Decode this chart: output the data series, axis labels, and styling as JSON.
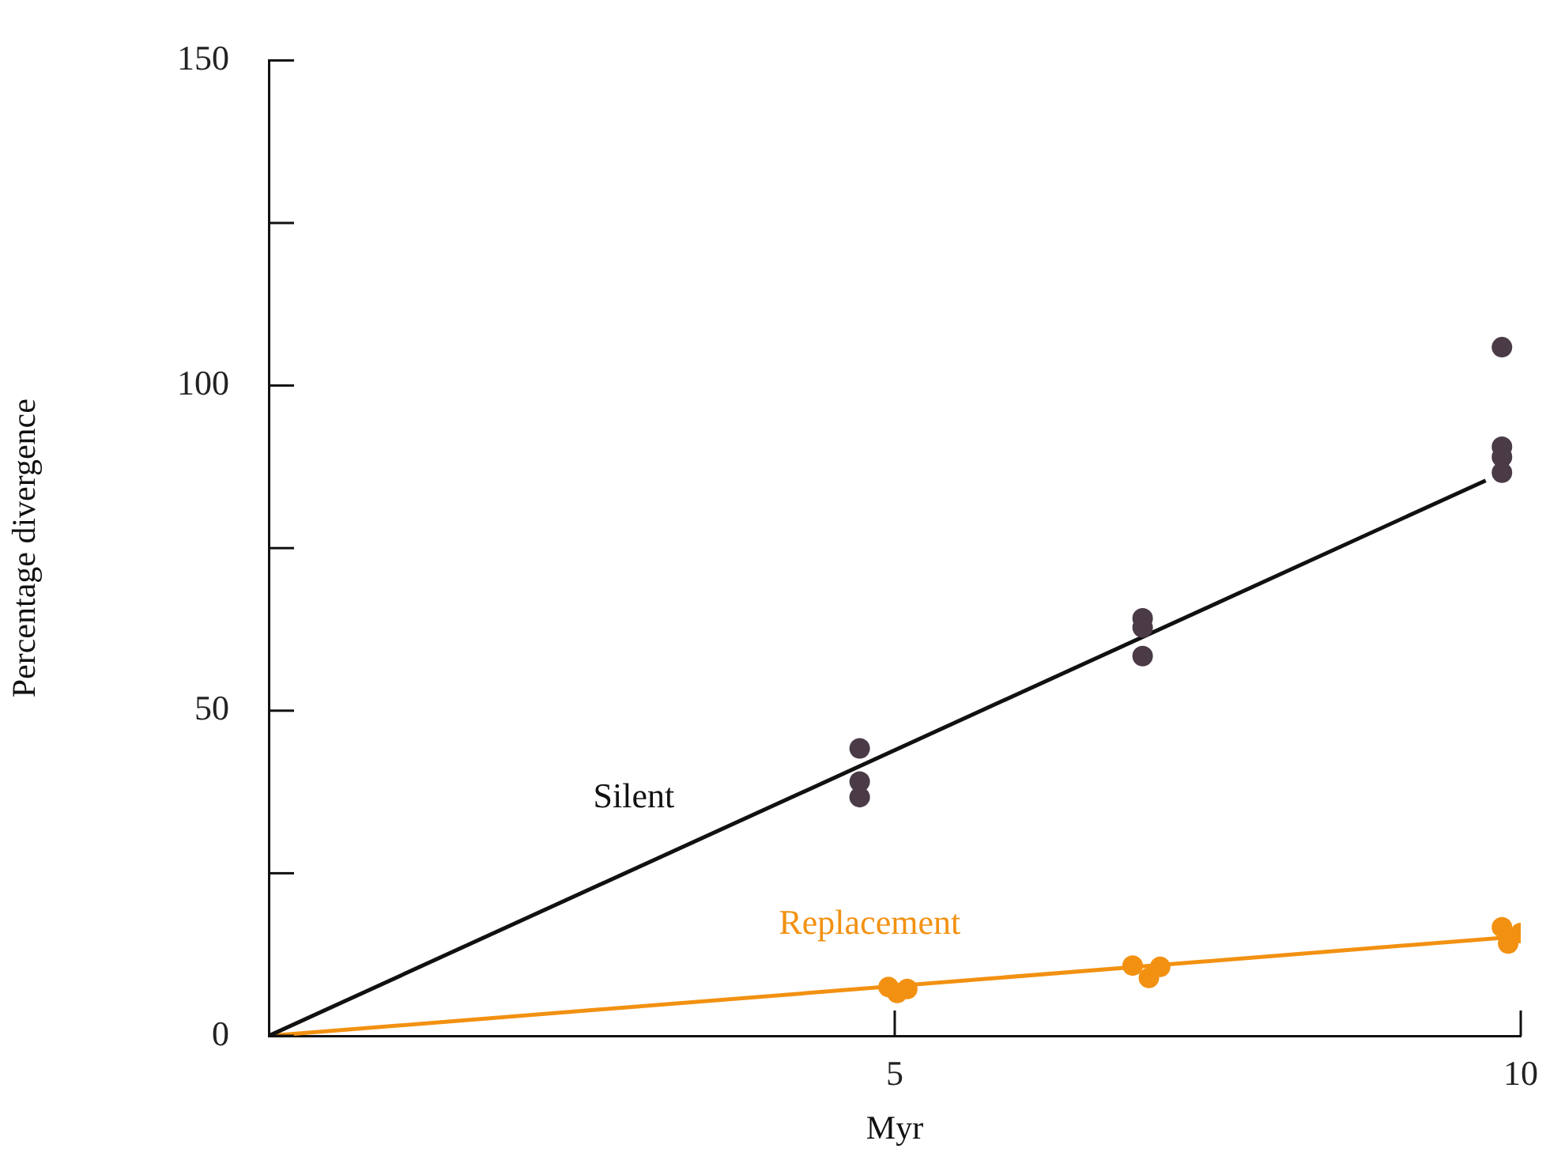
{
  "chart_data": {
    "type": "scatter",
    "xlabel": "Myr",
    "ylabel": "Percentage divergence",
    "xlim": [
      0,
      10
    ],
    "xticks": [
      5,
      10
    ],
    "ylim": [
      0,
      150
    ],
    "yticks": [
      0,
      {
        "value": 25,
        "label": null
      },
      50,
      {
        "value": 75,
        "label": null
      },
      100,
      {
        "value": 125,
        "label": null
      },
      150
    ],
    "grid": false,
    "legend": false,
    "marker": "circle",
    "series": [
      {
        "type": "scatter",
        "color": "#4b3b47",
        "x": [
          4.72,
          4.72,
          4.72,
          6.98,
          6.98,
          6.98,
          9.85,
          9.85,
          9.85,
          9.85
        ],
        "values": [
          44.2,
          39.1,
          36.7,
          64.2,
          62.8,
          58.4,
          105.9,
          90.6,
          89,
          86.6
        ]
      },
      {
        "type": "line",
        "name": "Silent",
        "color": "#111111",
        "marker": "none",
        "x": [
          0,
          9.72
        ],
        "values": [
          0,
          85.4
        ]
      },
      {
        "type": "scatter",
        "color": "#f29111",
        "x": [
          4.95,
          5.02,
          5.1,
          6.9,
          7.03,
          7.12,
          9.85,
          10,
          9.9
        ],
        "values": [
          7.5,
          6.6,
          7.2,
          10.8,
          8.9,
          10.6,
          16.7,
          15.8,
          14.2
        ]
      },
      {
        "type": "line",
        "name": "Replacement",
        "color": "#f29111",
        "marker": "none",
        "x": [
          0,
          10
        ],
        "values": [
          0,
          15.3
        ]
      }
    ]
  }
}
